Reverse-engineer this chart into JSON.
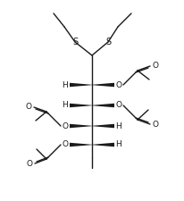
{
  "bg_color": "#ffffff",
  "line_color": "#1a1a1a",
  "line_width": 1.0,
  "font_size": 6.5,
  "figsize": [
    2.07,
    2.25
  ],
  "dpi": 100,
  "xlim": [
    0,
    207
  ],
  "ylim": [
    0,
    225
  ]
}
